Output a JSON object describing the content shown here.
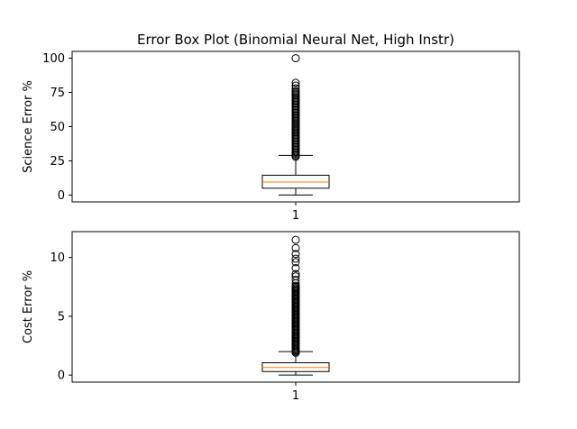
{
  "title": "Error Box Plot (Binomial Neural Net, High Instr)",
  "chart_data": [
    {
      "type": "box",
      "ylabel": "Science Error %",
      "xticks": [
        "1"
      ],
      "ylim": [
        -5,
        105
      ],
      "yticks": [
        0,
        25,
        50,
        75,
        100
      ],
      "box": {
        "whisker_low": 0,
        "q1": 5,
        "median": 9.5,
        "q3": 14.5,
        "whisker_high": 29
      },
      "outliers": [
        28,
        29,
        30,
        31,
        32,
        33,
        34,
        35,
        36,
        37,
        38,
        39,
        40,
        41,
        42,
        43,
        44,
        45,
        46,
        47,
        48,
        49,
        50,
        51,
        52,
        53,
        54,
        55,
        56,
        57,
        58,
        59,
        60,
        61,
        62,
        63,
        64,
        65,
        66,
        67,
        68,
        69,
        70,
        71,
        72,
        73,
        74,
        75,
        76,
        78,
        80,
        82,
        100
      ]
    },
    {
      "type": "box",
      "ylabel": "Cost Error %",
      "xticks": [
        "1"
      ],
      "ylim": [
        -0.6,
        12.2
      ],
      "yticks": [
        0,
        5,
        10
      ],
      "box": {
        "whisker_low": 0,
        "q1": 0.3,
        "median": 0.65,
        "q3": 1.05,
        "whisker_high": 2.0
      },
      "outliers": [
        1.9,
        2.0,
        2.1,
        2.2,
        2.3,
        2.4,
        2.5,
        2.6,
        2.7,
        2.8,
        2.9,
        3.0,
        3.1,
        3.2,
        3.3,
        3.4,
        3.5,
        3.6,
        3.7,
        3.8,
        3.9,
        4.0,
        4.1,
        4.2,
        4.3,
        4.4,
        4.5,
        4.6,
        4.7,
        4.8,
        4.9,
        5.0,
        5.1,
        5.2,
        5.3,
        5.4,
        5.5,
        5.6,
        5.7,
        5.8,
        5.9,
        6.0,
        6.1,
        6.2,
        6.3,
        6.4,
        6.5,
        6.6,
        6.7,
        6.8,
        6.9,
        7.0,
        7.1,
        7.2,
        7.3,
        7.4,
        7.5,
        7.6,
        7.8,
        8.1,
        8.4,
        8.6,
        9.1,
        9.6,
        9.9,
        10.3,
        10.8,
        11.5
      ]
    }
  ],
  "colors": {
    "median": "#ff7f0e",
    "box": "#000000"
  }
}
